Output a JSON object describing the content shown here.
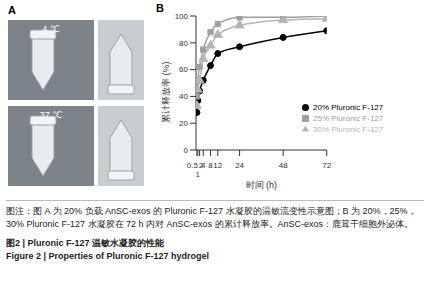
{
  "panel_a": {
    "label": "A",
    "photos": [
      {
        "label": "4 ℃"
      },
      {
        "label": "37 ℃"
      }
    ]
  },
  "chart_data": {
    "panel_label": "B",
    "type": "line",
    "x_label": "时间 (h)",
    "y_label": "累计释放率 (%)",
    "x": [
      0.5,
      1,
      2,
      4,
      8,
      12,
      24,
      48,
      72
    ],
    "xlim": [
      0,
      72
    ],
    "xticks": [
      0.5,
      1,
      2,
      4,
      8,
      12,
      24,
      48,
      72
    ],
    "ylim": [
      0,
      100
    ],
    "yticks": [
      0,
      20,
      40,
      60,
      80,
      100
    ],
    "grid": false,
    "legend": "lower right",
    "series": [
      {
        "name": "20% Pluronic F-127",
        "color": "#000000",
        "marker": "circle",
        "line_style": "solid",
        "values": [
          28,
          37,
          44,
          52,
          63,
          72,
          77,
          84,
          89
        ]
      },
      {
        "name": "25% Pluronic F-127",
        "color": "#a0a0a0",
        "marker": "square",
        "line_style": "solid",
        "values": [
          40,
          52,
          62,
          75,
          88,
          94,
          99,
          99,
          100
        ]
      },
      {
        "name": "30% Pluronic F-127",
        "color": "#b4b4b4",
        "marker": "triangle",
        "line_style": "solid",
        "values": [
          33,
          45,
          52,
          68,
          78,
          86,
          93,
          97,
          98
        ]
      }
    ]
  },
  "caption": {
    "note": "图注：图 A 为 20% 负载 AnSC-exos 的 Pluronic F-127 水凝胶的温敏流变性示意图；B 为 20%，25%，30% Pluronic F-127 水凝胶在 72 h 内对 AnSC-exos 的累计释放率。AnSC-exos：鹿茸干细胞外泌体。",
    "title_zh": "图2 | Pluronic F-127 温敏水凝胶的性能",
    "title_en": "Figure 2 | Properties of Pluronic F-127 hydrogel"
  }
}
